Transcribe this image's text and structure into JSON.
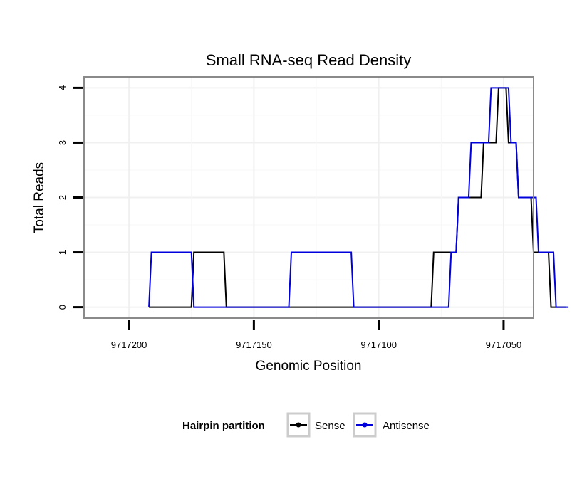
{
  "chart_data": {
    "type": "line",
    "title": "Small RNA-seq Read Density",
    "xlabel": "Genomic Position",
    "ylabel": "Total Reads",
    "x_reversed": true,
    "xlim": [
      9717218,
      9717038
    ],
    "ylim": [
      -0.2,
      4.2
    ],
    "x_ticks": [
      9717200,
      9717150,
      9717100,
      9717050
    ],
    "x_tick_labels": [
      "9717200",
      "9717150",
      "9717100",
      "9717050"
    ],
    "y_ticks": [
      0,
      1,
      2,
      3,
      4
    ],
    "y_tick_labels": [
      "0",
      "1",
      "2",
      "3",
      "4"
    ],
    "grid": true,
    "legend": {
      "title": "Hairpin partition",
      "position": "bottom"
    },
    "series": [
      {
        "name": "Sense",
        "color": "#000000",
        "x": [
          9717192,
          9717175,
          9717174,
          9717162,
          9717161,
          9717079,
          9717078,
          9717069,
          9717068,
          9717059,
          9717058,
          9717053,
          9717052,
          9717049,
          9717048,
          9717045,
          9717044,
          9717039,
          9717038,
          9717032,
          9717031,
          9717025
        ],
        "y": [
          0,
          0,
          1,
          1,
          0,
          0,
          1,
          1,
          2,
          2,
          3,
          3,
          4,
          4,
          3,
          3,
          2,
          2,
          1,
          1,
          0,
          0
        ]
      },
      {
        "name": "Antisense",
        "color": "#0000dd",
        "x": [
          9717192,
          9717191,
          9717175,
          9717174,
          9717136,
          9717135,
          9717111,
          9717110,
          9717072,
          9717071,
          9717069,
          9717068,
          9717064,
          9717063,
          9717056,
          9717055,
          9717048,
          9717047,
          9717045,
          9717044,
          9717037,
          9717036,
          9717030,
          9717029,
          9717024
        ],
        "y": [
          0,
          1,
          1,
          0,
          0,
          1,
          1,
          0,
          0,
          1,
          1,
          2,
          2,
          3,
          3,
          4,
          4,
          3,
          3,
          2,
          2,
          1,
          1,
          0,
          0
        ]
      }
    ]
  }
}
